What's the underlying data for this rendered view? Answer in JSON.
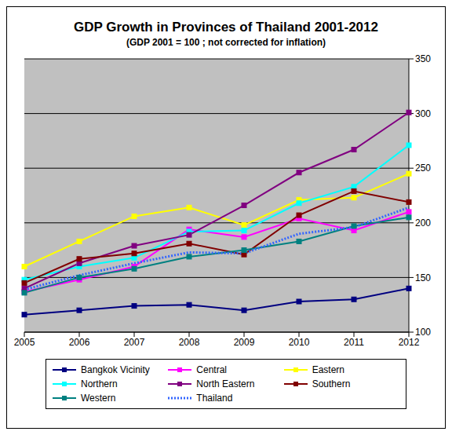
{
  "chart_data": {
    "type": "line",
    "title": "GDP Growth in Provinces of Thailand 2001-2012",
    "subtitle": "(GDP 2001 = 100 ; not corrected for inflation)",
    "categories": [
      "2005",
      "2006",
      "2007",
      "2008",
      "2009",
      "2010",
      "2011",
      "2012"
    ],
    "ylim": [
      100,
      350
    ],
    "yticks": [
      100,
      150,
      200,
      250,
      300,
      350
    ],
    "grid": true,
    "legend": "bottom",
    "series": [
      {
        "name": "Bangkok Vicinity",
        "color": "#000080",
        "marker": "square",
        "line_style": "solid",
        "values": [
          116,
          120,
          124,
          125,
          120,
          128,
          130,
          140
        ]
      },
      {
        "name": "Central",
        "color": "#FF00FF",
        "marker": "square",
        "line_style": "solid",
        "values": [
          137,
          148,
          160,
          194,
          187,
          204,
          193,
          210
        ]
      },
      {
        "name": "Eastern",
        "color": "#FFFF00",
        "marker": "square",
        "line_style": "solid",
        "values": [
          160,
          183,
          206,
          214,
          198,
          221,
          223,
          245
        ]
      },
      {
        "name": "Northern",
        "color": "#00FFFF",
        "marker": "square",
        "line_style": "solid",
        "values": [
          148,
          160,
          168,
          192,
          193,
          218,
          233,
          271
        ]
      },
      {
        "name": "North Eastern",
        "color": "#800080",
        "marker": "square",
        "line_style": "solid",
        "values": [
          140,
          163,
          179,
          189,
          216,
          246,
          267,
          301
        ]
      },
      {
        "name": "Southern",
        "color": "#800000",
        "marker": "square",
        "line_style": "solid",
        "values": [
          145,
          167,
          172,
          181,
          171,
          207,
          229,
          219
        ]
      },
      {
        "name": "Western",
        "color": "#008080",
        "marker": "square",
        "line_style": "solid",
        "values": [
          136,
          150,
          158,
          169,
          175,
          183,
          197,
          205
        ]
      },
      {
        "name": "Thailand",
        "color": "#3366FF",
        "marker": "none",
        "line_style": "dotted",
        "values": [
          139,
          152,
          163,
          173,
          172,
          190,
          196,
          214
        ]
      }
    ]
  }
}
